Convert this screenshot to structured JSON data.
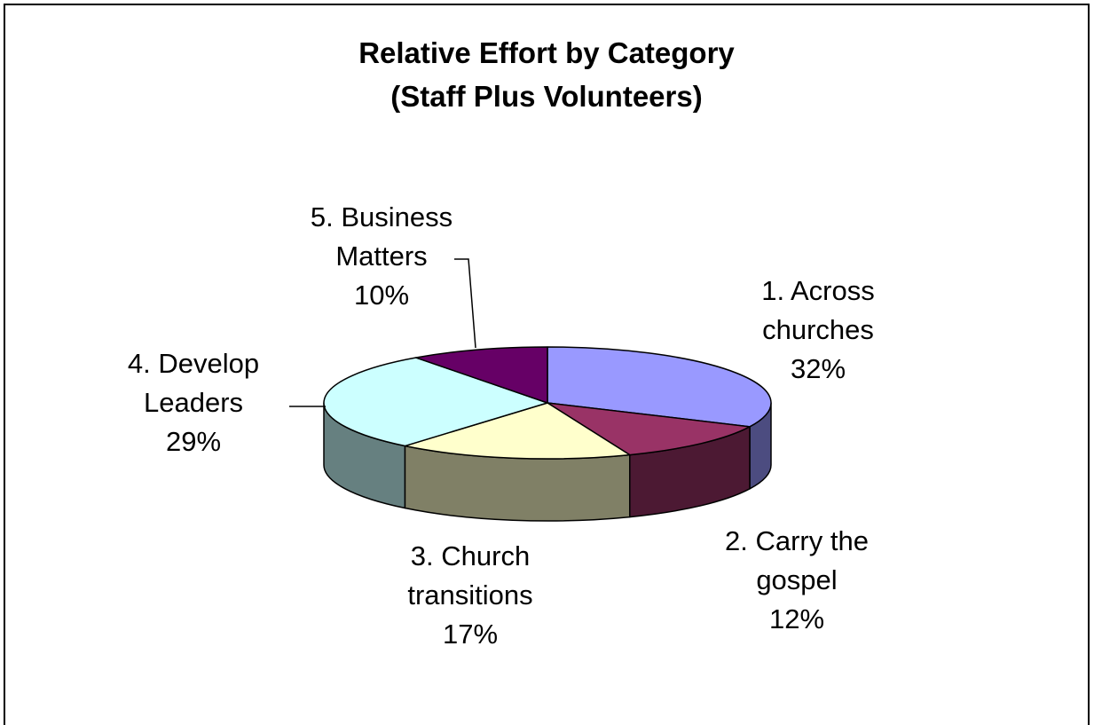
{
  "chart_data": {
    "type": "pie",
    "title": "Relative Effort by Category",
    "subtitle": "(Staff Plus Volunteers)",
    "slices": [
      {
        "label": "1. Across churches",
        "label_lines": [
          "1. Across",
          "churches",
          "32%"
        ],
        "value": 32,
        "percent_text": "32%",
        "top_color": "#9999ff",
        "side_color": "#4c4c80"
      },
      {
        "label": "2. Carry the gospel",
        "label_lines": [
          "2. Carry the",
          "gospel",
          "12%"
        ],
        "value": 12,
        "percent_text": "12%",
        "top_color": "#993366",
        "side_color": "#4c1933"
      },
      {
        "label": "3. Church transitions",
        "label_lines": [
          "3. Church",
          "transitions",
          "17%"
        ],
        "value": 17,
        "percent_text": "17%",
        "top_color": "#ffffcc",
        "side_color": "#808066"
      },
      {
        "label": "4. Develop Leaders",
        "label_lines": [
          "4. Develop",
          "Leaders",
          "29%"
        ],
        "value": 29,
        "percent_text": "29%",
        "top_color": "#ccffff",
        "side_color": "#668080"
      },
      {
        "label": "5. Business Matters",
        "label_lines": [
          "5. Business",
          "Matters",
          "10%"
        ],
        "value": 10,
        "percent_text": "10%",
        "top_color": "#660066",
        "side_color": "#330033"
      }
    ],
    "style": "3d-pie",
    "legend": "none",
    "border_color": "#000000"
  }
}
